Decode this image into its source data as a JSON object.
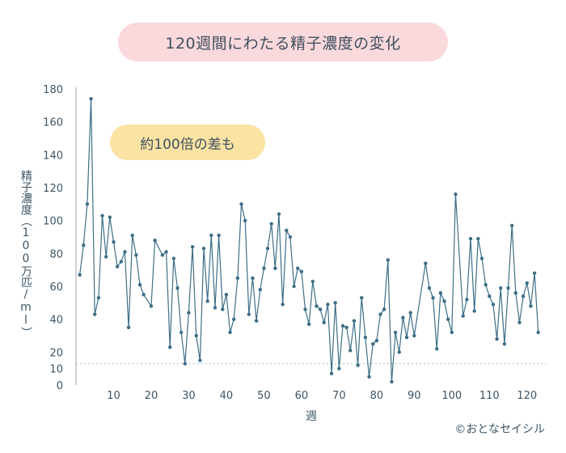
{
  "title": "120週間にわたる精子濃度の変化",
  "annotation": "約100倍の差も",
  "credit": "©おとなセイシル",
  "colors": {
    "line": "#3d6e86",
    "point": "#3d6e86",
    "axis": "#9aa7b0",
    "reference": "#b5bcc2",
    "title_bg": "#fad9dc",
    "note_bg": "#fbe3a3"
  },
  "chart_data": {
    "type": "line",
    "xlabel": "週",
    "ylabel": "精子濃度（100万匹/ml）",
    "xlim": [
      0,
      125
    ],
    "ylim": [
      0,
      180
    ],
    "x_ticks": [
      10,
      20,
      30,
      40,
      50,
      60,
      70,
      80,
      90,
      100,
      110,
      120
    ],
    "y_ticks": [
      0,
      10,
      20,
      40,
      60,
      80,
      100,
      120,
      140,
      160,
      180
    ],
    "reference_line": 13,
    "series": [
      {
        "x": [
          1,
          2,
          3,
          4,
          5,
          6,
          7,
          8,
          9,
          10,
          11,
          12,
          13,
          14,
          15,
          16,
          17,
          18,
          20,
          21,
          23,
          24,
          25,
          26,
          27,
          28,
          29,
          30,
          31,
          32,
          33,
          34,
          35,
          36,
          37,
          38,
          39,
          40,
          41,
          42,
          43,
          44,
          45,
          46,
          47,
          48,
          49,
          50,
          51,
          52,
          53,
          54,
          55,
          56,
          57,
          58,
          59,
          60,
          61,
          62,
          63,
          64,
          65,
          66,
          67,
          68,
          69,
          70,
          71,
          72,
          73,
          74,
          75,
          76,
          77,
          78,
          79,
          80,
          81,
          82,
          83,
          84,
          85,
          86,
          87,
          88,
          89,
          90,
          93,
          94,
          95,
          96,
          97,
          98,
          99,
          100,
          101,
          103,
          104,
          105,
          106,
          107,
          108,
          109,
          110,
          111,
          112,
          113,
          114,
          115,
          116,
          117,
          118,
          119,
          120,
          121,
          122,
          123
        ],
        "y": [
          67,
          85,
          110,
          174,
          43,
          53,
          103,
          78,
          102,
          87,
          72,
          75,
          81,
          35,
          91,
          79,
          61,
          55,
          48,
          88,
          79,
          81,
          23,
          77,
          59,
          32,
          13,
          44,
          84,
          30,
          15,
          83,
          51,
          91,
          47,
          91,
          46,
          55,
          32,
          40,
          65,
          110,
          100,
          43,
          65,
          39,
          58,
          71,
          83,
          98,
          71,
          104,
          49,
          94,
          90,
          60,
          71,
          69,
          46,
          37,
          63,
          48,
          46,
          38,
          49,
          7,
          50,
          10,
          36,
          35,
          21,
          39,
          12,
          53,
          29,
          5,
          25,
          27,
          43,
          46,
          76,
          2,
          32,
          20,
          41,
          29,
          44,
          30,
          74,
          59,
          53,
          22,
          56,
          51,
          40,
          32,
          116,
          42,
          52,
          89,
          45,
          89,
          77,
          61,
          54,
          49,
          28,
          59,
          25,
          59,
          97,
          56,
          38,
          54,
          62,
          48,
          68,
          32
        ]
      }
    ]
  }
}
